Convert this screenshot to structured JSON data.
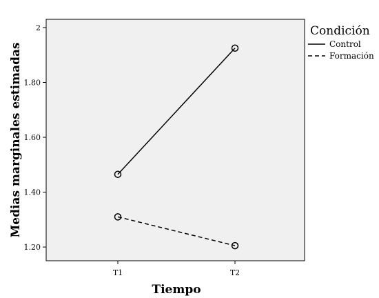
{
  "chart_data": {
    "type": "line",
    "categories": [
      "T1",
      "T2"
    ],
    "series": [
      {
        "name": "Control",
        "values": [
          1.465,
          1.925
        ],
        "style": "solid"
      },
      {
        "name": "Formación",
        "values": [
          1.31,
          1.205
        ],
        "style": "dashed"
      }
    ],
    "xlabel": "Tiempo",
    "ylabel": "Medias marginales estimadas",
    "ylim": [
      1.15,
      2.03
    ],
    "yticks": [
      {
        "value": 1.2,
        "label": "1.20"
      },
      {
        "value": 1.4,
        "label": "1.40"
      },
      {
        "value": 1.6,
        "label": "1.60"
      },
      {
        "value": 1.8,
        "label": "1.80"
      },
      {
        "value": 2.0,
        "label": "2"
      }
    ],
    "legend": {
      "title": "Condición",
      "placement": "top-right-outside"
    },
    "plot_background": "#f0f0f0",
    "line_color": "#000000",
    "grid": false
  }
}
